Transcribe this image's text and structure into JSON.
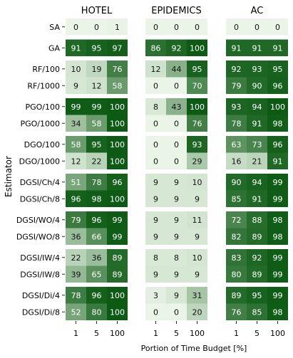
{
  "chart_data": {
    "type": "heatmap",
    "xlabel": "Portion of Time Budget [%]",
    "ylabel": "Estimator",
    "x_categories": [
      "1",
      "5",
      "100"
    ],
    "rows": [
      "SA",
      "GA",
      "RF/100",
      "RF/1000",
      "PGO/100",
      "PGO/1000",
      "DGO/100",
      "DGO/1000",
      "DGSI/Ch/4",
      "DGSI/Ch/8",
      "DGSI/WO/4",
      "DGSI/WO/8",
      "DGSI/IW/4",
      "DGSI/IW/8",
      "DGSI/Di/4",
      "DGSI/Di/8"
    ],
    "row_groups": [
      [
        0
      ],
      [
        1
      ],
      [
        2,
        3
      ],
      [
        4,
        5
      ],
      [
        6,
        7
      ],
      [
        8,
        9
      ],
      [
        10,
        11
      ],
      [
        12,
        13
      ],
      [
        14,
        15
      ]
    ],
    "value_range": [
      0,
      100
    ],
    "colors": {
      "low": "#eaf5e7",
      "high": "#0c5a13",
      "text_dark": "#111111",
      "text_light": "#ffffff"
    },
    "panels": [
      {
        "title": "HOTEL",
        "values": [
          [
            0,
            0,
            1
          ],
          [
            91,
            95,
            97
          ],
          [
            10,
            19,
            76
          ],
          [
            9,
            12,
            58
          ],
          [
            99,
            99,
            100
          ],
          [
            34,
            58,
            100
          ],
          [
            58,
            95,
            100
          ],
          [
            12,
            22,
            100
          ],
          [
            51,
            78,
            96
          ],
          [
            96,
            98,
            100
          ],
          [
            79,
            96,
            99
          ],
          [
            36,
            66,
            99
          ],
          [
            22,
            36,
            89
          ],
          [
            39,
            65,
            89
          ],
          [
            78,
            96,
            100
          ],
          [
            52,
            80,
            100
          ]
        ]
      },
      {
        "title": "EPIDEMICS",
        "values": [
          [
            0,
            0,
            0
          ],
          [
            86,
            92,
            100
          ],
          [
            12,
            44,
            95
          ],
          [
            0,
            0,
            70
          ],
          [
            8,
            43,
            100
          ],
          [
            0,
            0,
            76
          ],
          [
            0,
            0,
            93
          ],
          [
            0,
            0,
            29
          ],
          [
            9,
            9,
            10
          ],
          [
            9,
            9,
            9
          ],
          [
            9,
            9,
            11
          ],
          [
            9,
            9,
            9
          ],
          [
            8,
            8,
            10
          ],
          [
            9,
            9,
            9
          ],
          [
            3,
            9,
            31
          ],
          [
            0,
            0,
            20
          ]
        ]
      },
      {
        "title": "AC",
        "values": [
          [
            0,
            0,
            0
          ],
          [
            91,
            91,
            91
          ],
          [
            92,
            93,
            95
          ],
          [
            79,
            90,
            96
          ],
          [
            93,
            94,
            100
          ],
          [
            78,
            91,
            98
          ],
          [
            63,
            73,
            96
          ],
          [
            16,
            21,
            91
          ],
          [
            90,
            94,
            99
          ],
          [
            85,
            91,
            99
          ],
          [
            72,
            88,
            98
          ],
          [
            82,
            89,
            98
          ],
          [
            83,
            92,
            99
          ],
          [
            80,
            89,
            99
          ],
          [
            89,
            95,
            99
          ],
          [
            76,
            85,
            98
          ]
        ]
      }
    ]
  }
}
